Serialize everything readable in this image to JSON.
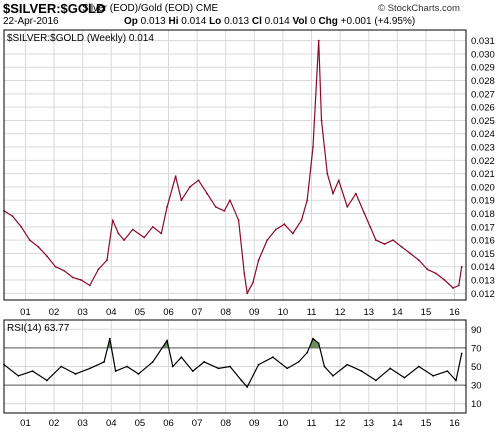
{
  "header": {
    "ticker": "$SILVER:$GOLD",
    "subtitle": "Silver (EOD)/Gold (EOD) CME",
    "date": "22-Apr-2016",
    "open_label": "Op",
    "open": "0.013",
    "high_label": "Hi",
    "high": "0.014",
    "low_label": "Lo",
    "low": "0.013",
    "close_label": "Cl",
    "close": "0.014",
    "vol_label": "Vol",
    "vol": "0",
    "chg_label": "Chg",
    "chg": "+0.001 (+4.95%)",
    "copyright": "© StockCharts.com"
  },
  "colors": {
    "price_line": "#8b0a2a",
    "rsi_line": "#000000",
    "rsi_fill": "#6b8e5a",
    "grid": "#d9d9d9",
    "frame": "#000000"
  },
  "chart_data": [
    {
      "type": "line",
      "legend": "$SILVER:$GOLD (Weekly) 0.014",
      "legend_placement": "top-left",
      "x_tick_labels": [
        "01",
        "02",
        "03",
        "04",
        "05",
        "06",
        "07",
        "08",
        "09",
        "10",
        "11",
        "12",
        "13",
        "14",
        "15",
        "16"
      ],
      "y_tick_labels": [
        "0.012",
        "0.013",
        "0.014",
        "0.015",
        "0.016",
        "0.017",
        "0.018",
        "0.019",
        "0.020",
        "0.021",
        "0.022",
        "0.023",
        "0.024",
        "0.025",
        "0.026",
        "0.027",
        "0.028",
        "0.029",
        "0.030",
        "0.031"
      ],
      "ylim": [
        0.0115,
        0.0318
      ],
      "grid": true,
      "series": [
        {
          "x": [
            2000.3,
            2000.6,
            2000.9,
            2001.2,
            2001.5,
            2001.8,
            2002.1,
            2002.4,
            2002.7,
            2003.0,
            2003.3,
            2003.6,
            2003.9,
            2004.1,
            2004.3,
            2004.5,
            2004.8,
            2005.2,
            2005.5,
            2005.8,
            2006.0,
            2006.3,
            2006.5,
            2006.8,
            2007.1,
            2007.4,
            2007.7,
            2008.0,
            2008.2,
            2008.5,
            2008.7,
            2008.8,
            2009.0,
            2009.2,
            2009.5,
            2009.8,
            2010.1,
            2010.4,
            2010.7,
            2010.9,
            2011.1,
            2011.3,
            2011.4,
            2011.6,
            2011.8,
            2012.0,
            2012.3,
            2012.6,
            2012.9,
            2013.1,
            2013.3,
            2013.6,
            2013.9,
            2014.2,
            2014.5,
            2014.8,
            2015.1,
            2015.4,
            2015.7,
            2016.0,
            2016.2,
            2016.3
          ],
          "values": [
            0.0182,
            0.0178,
            0.017,
            0.016,
            0.0155,
            0.0148,
            0.014,
            0.0137,
            0.0132,
            0.013,
            0.0126,
            0.0138,
            0.0145,
            0.0175,
            0.0165,
            0.016,
            0.0168,
            0.0162,
            0.017,
            0.0165,
            0.0185,
            0.0208,
            0.019,
            0.02,
            0.0205,
            0.0195,
            0.0185,
            0.0182,
            0.019,
            0.0175,
            0.0135,
            0.012,
            0.0128,
            0.0145,
            0.016,
            0.0168,
            0.0172,
            0.0165,
            0.0175,
            0.019,
            0.023,
            0.031,
            0.025,
            0.021,
            0.0195,
            0.0205,
            0.0185,
            0.0195,
            0.018,
            0.017,
            0.016,
            0.0157,
            0.016,
            0.0155,
            0.015,
            0.0145,
            0.0138,
            0.0135,
            0.013,
            0.0124,
            0.0126,
            0.014
          ]
        }
      ]
    },
    {
      "type": "line",
      "legend": "RSI(14) 63.77",
      "legend_placement": "top-left",
      "x_tick_labels": [
        "01",
        "02",
        "03",
        "04",
        "05",
        "06",
        "07",
        "08",
        "09",
        "10",
        "11",
        "12",
        "13",
        "14",
        "15",
        "16"
      ],
      "y_tick_labels": [
        "10",
        "30",
        "50",
        "70",
        "90"
      ],
      "ylim": [
        0,
        100
      ],
      "reference_lines": [
        30,
        70
      ],
      "grid": true,
      "series": [
        {
          "x": [
            2000.3,
            2000.8,
            2001.3,
            2001.8,
            2002.3,
            2002.8,
            2003.3,
            2003.8,
            2004.0,
            2004.2,
            2004.6,
            2005.0,
            2005.5,
            2006.0,
            2006.2,
            2006.5,
            2006.9,
            2007.3,
            2007.8,
            2008.2,
            2008.6,
            2008.8,
            2009.2,
            2009.7,
            2010.2,
            2010.6,
            2010.9,
            2011.1,
            2011.3,
            2011.5,
            2011.8,
            2012.3,
            2012.8,
            2013.3,
            2013.8,
            2014.3,
            2014.8,
            2015.3,
            2015.8,
            2016.1,
            2016.3
          ],
          "values": [
            52,
            40,
            45,
            35,
            50,
            42,
            48,
            55,
            80,
            45,
            50,
            42,
            55,
            78,
            50,
            60,
            45,
            55,
            48,
            50,
            35,
            28,
            52,
            60,
            48,
            55,
            65,
            80,
            75,
            50,
            40,
            52,
            45,
            35,
            48,
            38,
            50,
            40,
            45,
            35,
            64
          ]
        }
      ]
    }
  ]
}
